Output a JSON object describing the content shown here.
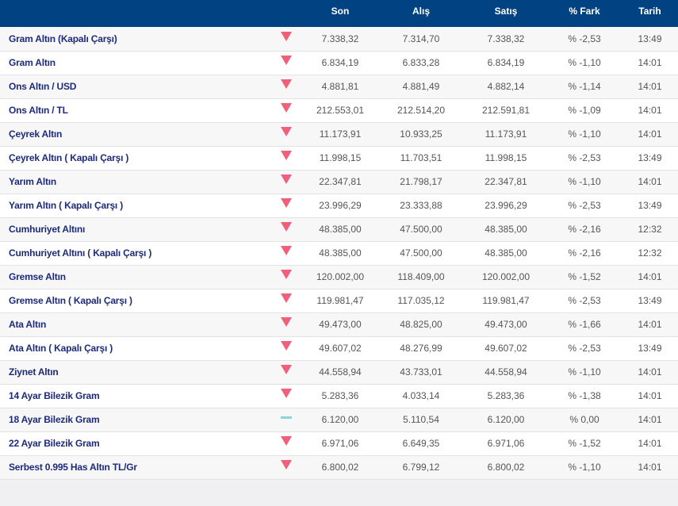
{
  "colors": {
    "header": "#014282",
    "down": "#f0607a",
    "flat": "#8ed3d8",
    "name": "#1e2a7c"
  },
  "headers": {
    "name": "",
    "trend": "",
    "son": "Son",
    "alis": "Alış",
    "satis": "Satış",
    "fark": "% Fark",
    "tarih": "Tarih"
  },
  "rows": [
    {
      "name": "Gram Altın (Kapalı Çarşı)",
      "trend": "down",
      "son": "7.338,32",
      "alis": "7.314,70",
      "satis": "7.338,32",
      "fark": "% -2,53",
      "tarih": "13:49"
    },
    {
      "name": "Gram Altın",
      "trend": "down",
      "son": "6.834,19",
      "alis": "6.833,28",
      "satis": "6.834,19",
      "fark": "% -1,10",
      "tarih": "14:01"
    },
    {
      "name": "Ons Altın / USD",
      "trend": "down",
      "son": "4.881,81",
      "alis": "4.881,49",
      "satis": "4.882,14",
      "fark": "% -1,14",
      "tarih": "14:01"
    },
    {
      "name": "Ons Altın / TL",
      "trend": "down",
      "son": "212.553,01",
      "alis": "212.514,20",
      "satis": "212.591,81",
      "fark": "% -1,09",
      "tarih": "14:01"
    },
    {
      "name": "Çeyrek Altın",
      "trend": "down",
      "son": "11.173,91",
      "alis": "10.933,25",
      "satis": "11.173,91",
      "fark": "% -1,10",
      "tarih": "14:01"
    },
    {
      "name": "Çeyrek Altın ( Kapalı Çarşı )",
      "trend": "down",
      "son": "11.998,15",
      "alis": "11.703,51",
      "satis": "11.998,15",
      "fark": "% -2,53",
      "tarih": "13:49"
    },
    {
      "name": "Yarım Altın",
      "trend": "down",
      "son": "22.347,81",
      "alis": "21.798,17",
      "satis": "22.347,81",
      "fark": "% -1,10",
      "tarih": "14:01"
    },
    {
      "name": "Yarım Altın ( Kapalı Çarşı )",
      "trend": "down",
      "son": "23.996,29",
      "alis": "23.333,88",
      "satis": "23.996,29",
      "fark": "% -2,53",
      "tarih": "13:49"
    },
    {
      "name": "Cumhuriyet Altını",
      "trend": "down",
      "son": "48.385,00",
      "alis": "47.500,00",
      "satis": "48.385,00",
      "fark": "% -2,16",
      "tarih": "12:32"
    },
    {
      "name": "Cumhuriyet Altını ( Kapalı Çarşı )",
      "trend": "down",
      "son": "48.385,00",
      "alis": "47.500,00",
      "satis": "48.385,00",
      "fark": "% -2,16",
      "tarih": "12:32"
    },
    {
      "name": "Gremse Altın",
      "trend": "down",
      "son": "120.002,00",
      "alis": "118.409,00",
      "satis": "120.002,00",
      "fark": "% -1,52",
      "tarih": "14:01"
    },
    {
      "name": "Gremse Altın ( Kapalı Çarşı )",
      "trend": "down",
      "son": "119.981,47",
      "alis": "117.035,12",
      "satis": "119.981,47",
      "fark": "% -2,53",
      "tarih": "13:49"
    },
    {
      "name": "Ata Altın",
      "trend": "down",
      "son": "49.473,00",
      "alis": "48.825,00",
      "satis": "49.473,00",
      "fark": "% -1,66",
      "tarih": "14:01"
    },
    {
      "name": "Ata Altın ( Kapalı Çarşı )",
      "trend": "down",
      "son": "49.607,02",
      "alis": "48.276,99",
      "satis": "49.607,02",
      "fark": "% -2,53",
      "tarih": "13:49"
    },
    {
      "name": "Ziynet Altın",
      "trend": "down",
      "son": "44.558,94",
      "alis": "43.733,01",
      "satis": "44.558,94",
      "fark": "% -1,10",
      "tarih": "14:01"
    },
    {
      "name": "14 Ayar Bilezik Gram",
      "trend": "down",
      "son": "5.283,36",
      "alis": "4.033,14",
      "satis": "5.283,36",
      "fark": "% -1,38",
      "tarih": "14:01"
    },
    {
      "name": "18 Ayar Bilezik Gram",
      "trend": "flat",
      "son": "6.120,00",
      "alis": "5.110,54",
      "satis": "6.120,00",
      "fark": "% 0,00",
      "tarih": "14:01"
    },
    {
      "name": "22 Ayar Bilezik Gram",
      "trend": "down",
      "son": "6.971,06",
      "alis": "6.649,35",
      "satis": "6.971,06",
      "fark": "% -1,52",
      "tarih": "14:01"
    },
    {
      "name": "Serbest 0.995 Has Altın TL/Gr",
      "trend": "down",
      "son": "6.800,02",
      "alis": "6.799,12",
      "satis": "6.800,02",
      "fark": "% -1,10",
      "tarih": "14:01"
    }
  ]
}
